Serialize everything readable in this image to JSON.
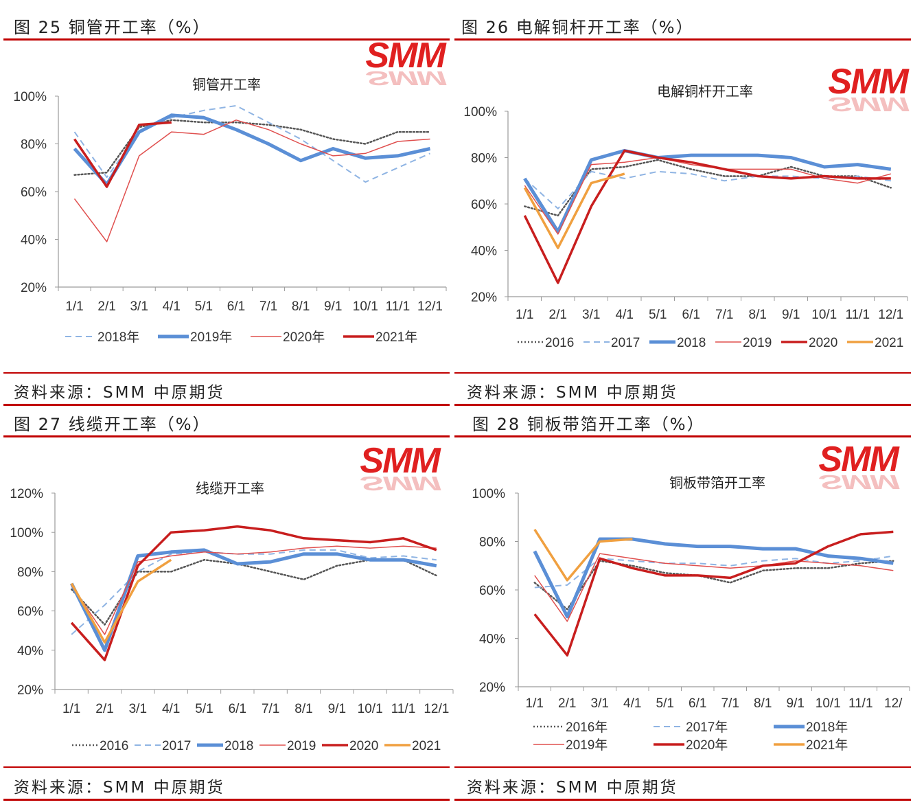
{
  "panels": [
    {
      "header": "图 25 铜管开工率（%）",
      "source": "资料来源：SMM 中原期货",
      "chart_data": {
        "type": "line",
        "title": "铜管开工率",
        "logo": "SMM",
        "categories": [
          "1/1",
          "2/1",
          "3/1",
          "4/1",
          "5/1",
          "6/1",
          "7/1",
          "8/1",
          "9/1",
          "10/1",
          "11/1",
          "12/1"
        ],
        "yticks": [
          "20%",
          "40%",
          "60%",
          "80%",
          "100%"
        ],
        "ylim": [
          20,
          100
        ],
        "grid": false,
        "legend_position": "bottom",
        "series": [
          {
            "name": "",
            "style": "dotted",
            "color": "#555555",
            "width": 2.5,
            "legend": false,
            "values": [
              67,
              68,
              87,
              90,
              89,
              89,
              88,
              86,
              82,
              80,
              85,
              85
            ]
          },
          {
            "name": "2018年",
            "style": "dashed",
            "color": "#8fb4e3",
            "width": 2,
            "values": [
              85,
              66,
              85,
              91,
              94,
              96,
              89,
              82,
              73,
              64,
              70,
              76
            ]
          },
          {
            "name": "2019年",
            "style": "solid",
            "color": "#5b8fd6",
            "width": 5,
            "values": [
              78,
              63,
              85,
              92,
              91,
              86,
              80,
              73,
              78,
              74,
              75,
              78
            ]
          },
          {
            "name": "2020年",
            "style": "solid",
            "color": "#e0504f",
            "width": 1.5,
            "values": [
              57,
              39,
              75,
              85,
              84,
              90,
              86,
              80,
              75,
              76,
              81,
              82
            ]
          },
          {
            "name": "2021年",
            "style": "solid",
            "color": "#c81e1e",
            "width": 3.5,
            "values": [
              82,
              62,
              88,
              89,
              null,
              null,
              null,
              null,
              null,
              null,
              null,
              null
            ]
          }
        ]
      }
    },
    {
      "header": "图 26 电解铜杆开工率（%）",
      "source": "资料来源：SMM 中原期货",
      "chart_data": {
        "type": "line",
        "title": "电解铜杆开工率",
        "logo": "SMM",
        "categories": [
          "1/1",
          "2/1",
          "3/1",
          "4/1",
          "5/1",
          "6/1",
          "7/1",
          "8/1",
          "9/1",
          "10/1",
          "11/1",
          "12/1"
        ],
        "yticks": [
          "20%",
          "40%",
          "60%",
          "80%",
          "100%"
        ],
        "ylim": [
          20,
          100
        ],
        "grid": false,
        "legend_position": "bottom",
        "series": [
          {
            "name": "2016",
            "style": "dotted",
            "color": "#555555",
            "width": 2.5,
            "values": [
              59,
              55,
              75,
              76,
              79,
              75,
              72,
              72,
              76,
              72,
              72,
              67
            ]
          },
          {
            "name": "2017",
            "style": "dashed",
            "color": "#8fb4e3",
            "width": 2,
            "values": [
              71,
              58,
              74,
              71,
              74,
              73,
              70,
              72,
              72,
              71,
              72,
              70
            ]
          },
          {
            "name": "2018",
            "style": "solid",
            "color": "#5b8fd6",
            "width": 5,
            "values": [
              71,
              48,
              79,
              83,
              80,
              81,
              81,
              81,
              80,
              76,
              77,
              75
            ]
          },
          {
            "name": "2019",
            "style": "solid",
            "color": "#e0504f",
            "width": 1.5,
            "values": [
              68,
              47,
              77,
              78,
              80,
              77,
              75,
              75,
              75,
              71,
              69,
              73
            ]
          },
          {
            "name": "2020",
            "style": "solid",
            "color": "#c81e1e",
            "width": 3.5,
            "values": [
              55,
              26,
              59,
              83,
              80,
              78,
              75,
              72,
              71,
              72,
              71,
              71
            ]
          },
          {
            "name": "2021",
            "style": "solid",
            "color": "#f0a040",
            "width": 3.5,
            "values": [
              67,
              41,
              69,
              73,
              null,
              null,
              null,
              null,
              null,
              null,
              null,
              null
            ]
          }
        ]
      }
    },
    {
      "header": "图 27 线缆开工率（%）",
      "source": "资料来源：SMM 中原期货",
      "chart_data": {
        "type": "line",
        "title": "线缆开工率",
        "logo": "SMM",
        "categories": [
          "1/1",
          "2/1",
          "3/1",
          "4/1",
          "5/1",
          "6/1",
          "7/1",
          "8/1",
          "9/1",
          "10/1",
          "11/1",
          "12/1"
        ],
        "yticks": [
          "20%",
          "40%",
          "60%",
          "80%",
          "100%",
          "120%"
        ],
        "ylim": [
          20,
          120
        ],
        "grid": false,
        "legend_position": "bottom",
        "series": [
          {
            "name": "2016",
            "style": "dotted",
            "color": "#555555",
            "width": 2.5,
            "values": [
              71,
              53,
              80,
              80,
              86,
              84,
              80,
              76,
              83,
              86,
              86,
              78
            ]
          },
          {
            "name": "2017",
            "style": "dashed",
            "color": "#8fb4e3",
            "width": 2,
            "values": [
              48,
              63,
              80,
              89,
              90,
              89,
              89,
              91,
              91,
              87,
              88,
              86
            ]
          },
          {
            "name": "2018",
            "style": "solid",
            "color": "#5b8fd6",
            "width": 5,
            "values": [
              74,
              40,
              88,
              90,
              91,
              84,
              85,
              89,
              89,
              86,
              86,
              83
            ]
          },
          {
            "name": "2019",
            "style": "solid",
            "color": "#e0504f",
            "width": 1.5,
            "values": [
              73,
              48,
              85,
              88,
              90,
              89,
              90,
              92,
              93,
              92,
              93,
              92
            ]
          },
          {
            "name": "2020",
            "style": "solid",
            "color": "#c81e1e",
            "width": 3.5,
            "values": [
              54,
              35,
              83,
              100,
              101,
              103,
              101,
              97,
              96,
              95,
              97,
              91
            ]
          },
          {
            "name": "2021",
            "style": "solid",
            "color": "#f0a040",
            "width": 3.5,
            "values": [
              74,
              44,
              75,
              86,
              null,
              null,
              null,
              null,
              null,
              null,
              null,
              null
            ]
          }
        ]
      }
    },
    {
      "header": "图 28 铜板带箔开工率（%）",
      "source": "资料来源：SMM 中原期货",
      "chart_data": {
        "type": "line",
        "title": "铜板带箔开工率",
        "logo": "SMM",
        "categories": [
          "1/1",
          "2/1",
          "3/1",
          "4/1",
          "5/1",
          "6/1",
          "7/1",
          "8/1",
          "9/1",
          "10/1",
          "11/1",
          "12/"
        ],
        "yticks": [
          "20%",
          "40%",
          "60%",
          "80%",
          "100%"
        ],
        "ylim": [
          20,
          100
        ],
        "grid": false,
        "legend_position": "bottom",
        "series": [
          {
            "name": "2016年",
            "style": "dotted",
            "color": "#555555",
            "width": 2.5,
            "values": [
              63,
              52,
              72,
              70,
              67,
              66,
              63,
              68,
              69,
              69,
              71,
              72
            ]
          },
          {
            "name": "2017年",
            "style": "dashed",
            "color": "#8fb4e3",
            "width": 2,
            "values": [
              61,
              62,
              73,
              72,
              71,
              71,
              70,
              72,
              73,
              71,
              72,
              74
            ]
          },
          {
            "name": "2018年",
            "style": "solid",
            "color": "#5b8fd6",
            "width": 5,
            "values": [
              76,
              49,
              81,
              81,
              79,
              78,
              78,
              77,
              77,
              74,
              73,
              71
            ]
          },
          {
            "name": "2019年",
            "style": "solid",
            "color": "#e0504f",
            "width": 1.5,
            "values": [
              66,
              47,
              75,
              73,
              71,
              70,
              69,
              70,
              72,
              71,
              70,
              68
            ]
          },
          {
            "name": "2020年",
            "style": "solid",
            "color": "#c81e1e",
            "width": 3.5,
            "values": [
              50,
              33,
              73,
              69,
              66,
              66,
              65,
              70,
              71,
              78,
              83,
              84
            ]
          },
          {
            "name": "2021年",
            "style": "solid",
            "color": "#f0a040",
            "width": 3.5,
            "values": [
              85,
              64,
              80,
              81,
              null,
              null,
              null,
              null,
              null,
              null,
              null,
              null
            ]
          }
        ]
      }
    }
  ]
}
